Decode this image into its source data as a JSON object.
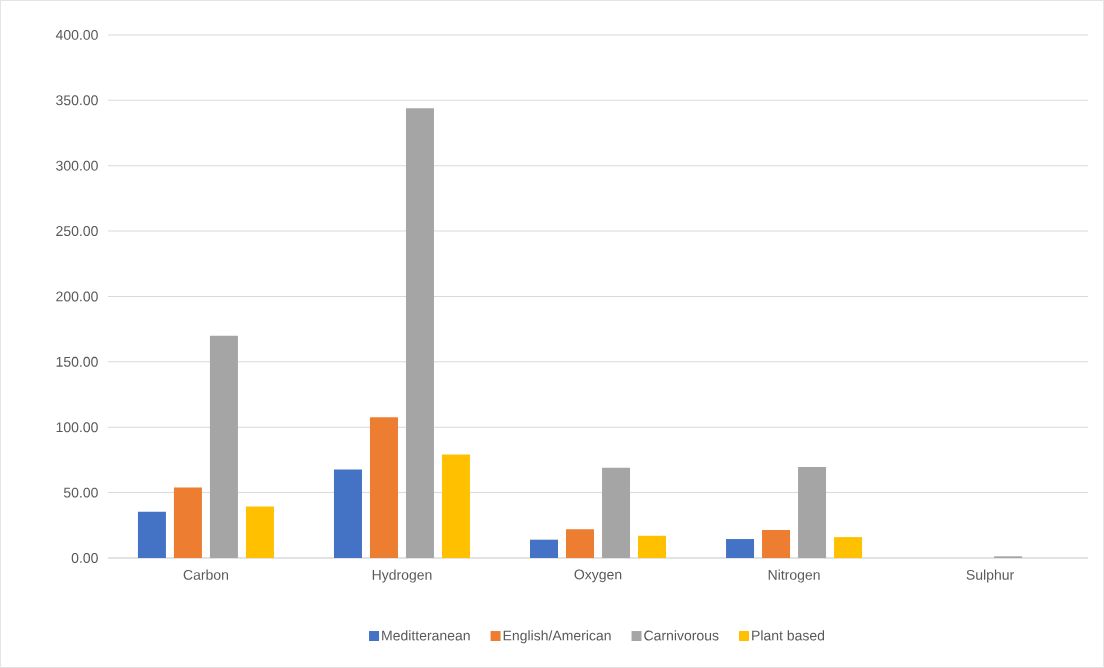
{
  "chart_data": {
    "type": "bar",
    "categories": [
      "Carbon",
      "Hydrogen",
      "Oxygen",
      "Nitrogen",
      "Sulphur"
    ],
    "series": [
      {
        "name": "Meditteranean",
        "color": "#4472c4",
        "values": [
          35.4,
          67.6,
          14,
          14.5,
          0
        ]
      },
      {
        "name": "English/American",
        "color": "#ed7d31",
        "values": [
          54,
          107.7,
          22,
          21.4,
          0
        ]
      },
      {
        "name": "Carnivorous",
        "color": "#a5a5a5",
        "values": [
          170,
          344,
          69,
          69.6,
          1.3
        ]
      },
      {
        "name": "Plant based",
        "color": "#ffc000",
        "values": [
          39.3,
          79.1,
          17,
          16,
          0
        ]
      }
    ],
    "ylim": [
      0,
      400
    ],
    "yticks": [
      {
        "value": 0,
        "label": "0.00"
      },
      {
        "value": 50,
        "label": "50.00"
      },
      {
        "value": 100,
        "label": "100.00"
      },
      {
        "value": 150,
        "label": "150.00"
      },
      {
        "value": 200,
        "label": "200.00"
      },
      {
        "value": 250,
        "label": "250.00"
      },
      {
        "value": 300,
        "label": "300.00"
      },
      {
        "value": 350,
        "label": "350.00"
      },
      {
        "value": 400,
        "label": "400.00"
      }
    ],
    "grid": "y",
    "legend": "bottom"
  }
}
